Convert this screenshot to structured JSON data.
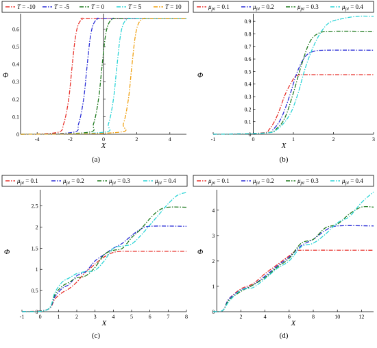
{
  "chart_data": [
    {
      "type": "line",
      "caption": "(a)",
      "xlabel": "X",
      "ylabel": "Φ",
      "xlim": [
        -5,
        5
      ],
      "ylim": [
        0,
        0.68
      ],
      "xticks": [
        -4,
        -2,
        0,
        2,
        4
      ],
      "yticks": [
        0,
        0.1,
        0.2,
        0.3,
        0.4,
        0.5,
        0.6
      ],
      "legend_prefix": "T",
      "legend_position": "top",
      "series": [
        {
          "name": "T = -10",
          "label": "-10",
          "color": "#e8322c",
          "x": [
            -5,
            -2.8,
            -2.4,
            -2.1,
            -1.9,
            -1.7,
            -1.5,
            -1.2,
            -0.8,
            5
          ],
          "y": [
            0,
            0.01,
            0.06,
            0.2,
            0.38,
            0.55,
            0.63,
            0.66,
            0.66,
            0.66
          ]
        },
        {
          "name": "T = -5",
          "label": "-5",
          "color": "#2b2fd6",
          "x": [
            -5,
            -1.9,
            -1.5,
            -1.2,
            -1.0,
            -0.8,
            -0.6,
            -0.3,
            0.1,
            5
          ],
          "y": [
            0,
            0.01,
            0.06,
            0.2,
            0.38,
            0.55,
            0.63,
            0.66,
            0.66,
            0.66
          ]
        },
        {
          "name": "T = 0",
          "label": "0",
          "color": "#1f7a1f",
          "x": [
            -5,
            -1.0,
            -0.6,
            -0.3,
            -0.1,
            0.1,
            0.3,
            0.6,
            1.0,
            5
          ],
          "y": [
            0,
            0.01,
            0.06,
            0.2,
            0.38,
            0.55,
            0.63,
            0.66,
            0.66,
            0.66
          ]
        },
        {
          "name": "T = 5",
          "label": "5",
          "color": "#2ad4d6",
          "x": [
            -5,
            -0.1,
            0.3,
            0.6,
            0.8,
            1.0,
            1.2,
            1.5,
            1.9,
            5
          ],
          "y": [
            0,
            0.01,
            0.06,
            0.2,
            0.38,
            0.55,
            0.63,
            0.66,
            0.66,
            0.66
          ]
        },
        {
          "name": "T = 10",
          "label": "10",
          "color": "#f0a010",
          "x": [
            -5,
            0.8,
            1.2,
            1.5,
            1.7,
            1.9,
            2.1,
            2.4,
            2.8,
            5
          ],
          "y": [
            0,
            0.01,
            0.06,
            0.2,
            0.38,
            0.55,
            0.63,
            0.66,
            0.66,
            0.66
          ]
        }
      ]
    },
    {
      "type": "line",
      "caption": "(b)",
      "xlabel": "X",
      "ylabel": "Φ",
      "xlim": [
        -1,
        3
      ],
      "ylim": [
        0,
        0.95
      ],
      "xticks": [
        -1,
        0,
        1,
        2,
        3
      ],
      "yticks": [
        0,
        0.1,
        0.2,
        0.3,
        0.4,
        0.5,
        0.6,
        0.7,
        0.8,
        0.9
      ],
      "legend_prefix": "μpi",
      "legend_position": "top",
      "series": [
        {
          "name": "μpi = 0.1",
          "label": "0.1",
          "color": "#e8322c",
          "x": [
            -1,
            0.2,
            0.4,
            0.6,
            0.8,
            1.0,
            1.1,
            1.2,
            1.4,
            3
          ],
          "y": [
            0,
            0.01,
            0.04,
            0.15,
            0.32,
            0.44,
            0.47,
            0.475,
            0.475,
            0.475
          ]
        },
        {
          "name": "μpi = 0.2",
          "label": "0.2",
          "color": "#2b2fd6",
          "x": [
            -1,
            0.3,
            0.5,
            0.7,
            0.9,
            1.1,
            1.3,
            1.5,
            1.8,
            3
          ],
          "y": [
            0,
            0.01,
            0.04,
            0.13,
            0.3,
            0.5,
            0.62,
            0.66,
            0.67,
            0.67
          ]
        },
        {
          "name": "μpi = 0.3",
          "label": "0.3",
          "color": "#1f7a1f",
          "x": [
            -1,
            0.3,
            0.6,
            0.8,
            1.0,
            1.2,
            1.4,
            1.6,
            1.9,
            3
          ],
          "y": [
            0,
            0.01,
            0.05,
            0.14,
            0.33,
            0.55,
            0.73,
            0.8,
            0.82,
            0.82
          ]
        },
        {
          "name": "μpi = 0.4",
          "label": "0.4",
          "color": "#2ad4d6",
          "x": [
            -1,
            0.3,
            0.6,
            0.9,
            1.1,
            1.3,
            1.5,
            1.7,
            1.9,
            2.2,
            2.6,
            3
          ],
          "y": [
            0,
            0.01,
            0.04,
            0.15,
            0.31,
            0.53,
            0.7,
            0.82,
            0.89,
            0.92,
            0.94,
            0.94
          ]
        }
      ]
    },
    {
      "type": "line",
      "caption": "(c)",
      "xlabel": "X",
      "ylabel": "Φ",
      "xlim": [
        -1,
        8
      ],
      "ylim": [
        0,
        2.85
      ],
      "xticks": [
        -1,
        0,
        1,
        2,
        3,
        4,
        5,
        6,
        7,
        8
      ],
      "yticks": [
        0,
        0.5,
        1,
        1.5,
        2,
        2.5
      ],
      "legend_prefix": "μpi",
      "legend_position": "top",
      "series": [
        {
          "name": "μpi = 0.1",
          "label": "0.1",
          "color": "#e8322c",
          "x": [
            -1,
            0.4,
            0.8,
            1.2,
            1.6,
            2.0,
            2.4,
            2.8,
            3.2,
            3.6,
            4.0,
            4.5,
            5.0,
            8
          ],
          "y": [
            0,
            0.05,
            0.3,
            0.45,
            0.55,
            0.7,
            0.9,
            1.05,
            1.2,
            1.32,
            1.4,
            1.43,
            1.43,
            1.43
          ]
        },
        {
          "name": "μpi = 0.2",
          "label": "0.2",
          "color": "#2b2fd6",
          "x": [
            -1,
            0.4,
            0.8,
            1.2,
            1.6,
            2.0,
            2.5,
            3.0,
            3.5,
            4.0,
            4.5,
            5.0,
            5.5,
            6.0,
            8
          ],
          "y": [
            0,
            0.05,
            0.35,
            0.55,
            0.65,
            0.85,
            0.95,
            1.2,
            1.35,
            1.5,
            1.62,
            1.8,
            1.95,
            2.02,
            2.02
          ]
        },
        {
          "name": "μpi = 0.3",
          "label": "0.3",
          "color": "#1f7a1f",
          "x": [
            -1,
            0.4,
            0.8,
            1.2,
            1.6,
            2.0,
            2.5,
            3.0,
            3.5,
            4.0,
            4.5,
            5.0,
            5.5,
            6.0,
            6.5,
            7.0,
            8
          ],
          "y": [
            0,
            0.05,
            0.4,
            0.6,
            0.7,
            0.8,
            0.85,
            1.05,
            1.35,
            1.45,
            1.5,
            1.75,
            1.95,
            2.2,
            2.4,
            2.47,
            2.47
          ]
        },
        {
          "name": "μpi = 0.4",
          "label": "0.4",
          "color": "#2ad4d6",
          "x": [
            -1,
            0.4,
            0.8,
            1.2,
            1.6,
            2.0,
            2.5,
            3.0,
            3.5,
            4.0,
            4.5,
            5.0,
            5.5,
            6.0,
            6.5,
            7.0,
            7.5,
            8
          ],
          "y": [
            0,
            0.05,
            0.45,
            0.7,
            0.8,
            0.9,
            0.95,
            0.98,
            1.2,
            1.5,
            1.55,
            1.6,
            1.8,
            2.05,
            2.3,
            2.55,
            2.75,
            2.82
          ]
        }
      ]
    },
    {
      "type": "line",
      "caption": "(d)",
      "xlabel": "X",
      "ylabel": "Φ",
      "xlim": [
        -0.3,
        13
      ],
      "ylim": [
        0,
        4.75
      ],
      "xticks": [
        2,
        4,
        6,
        8,
        10,
        12
      ],
      "yticks": [
        0,
        1,
        2,
        3,
        4
      ],
      "legend_prefix": "μpi",
      "legend_position": "top",
      "series": [
        {
          "name": "μpi = 0.1",
          "label": "0.1",
          "color": "#e8322c",
          "x": [
            -0.3,
            0.5,
            1,
            2,
            3,
            4,
            5,
            6,
            6.5,
            7,
            13
          ],
          "y": [
            0,
            0.05,
            0.5,
            0.9,
            1.1,
            1.5,
            1.85,
            2.2,
            2.38,
            2.42,
            2.42
          ]
        },
        {
          "name": "μpi = 0.2",
          "label": "0.2",
          "color": "#2b2fd6",
          "x": [
            -0.3,
            0.5,
            1,
            2,
            3,
            4,
            5,
            6,
            7,
            8,
            9,
            10,
            13
          ],
          "y": [
            0,
            0.05,
            0.5,
            0.85,
            1.05,
            1.4,
            1.8,
            2.15,
            2.6,
            2.85,
            3.2,
            3.38,
            3.38
          ]
        },
        {
          "name": "μpi = 0.3",
          "label": "0.3",
          "color": "#1f7a1f",
          "x": [
            -0.3,
            0.5,
            1,
            2,
            3,
            4,
            5,
            6,
            7,
            8,
            9,
            10,
            11,
            12,
            13
          ],
          "y": [
            0,
            0.05,
            0.45,
            0.8,
            1.05,
            1.35,
            1.75,
            2.1,
            2.7,
            2.85,
            3.3,
            3.45,
            3.85,
            4.12,
            4.12
          ]
        },
        {
          "name": "μpi = 0.4",
          "label": "0.4",
          "color": "#2ad4d6",
          "x": [
            -0.3,
            0.5,
            1,
            2,
            3,
            4,
            5,
            6,
            7,
            8,
            9,
            10,
            11,
            12,
            13
          ],
          "y": [
            0,
            0.05,
            0.4,
            0.85,
            0.95,
            1.3,
            1.7,
            2.0,
            2.55,
            2.7,
            3.05,
            3.5,
            3.75,
            4.3,
            4.72
          ]
        }
      ]
    }
  ]
}
